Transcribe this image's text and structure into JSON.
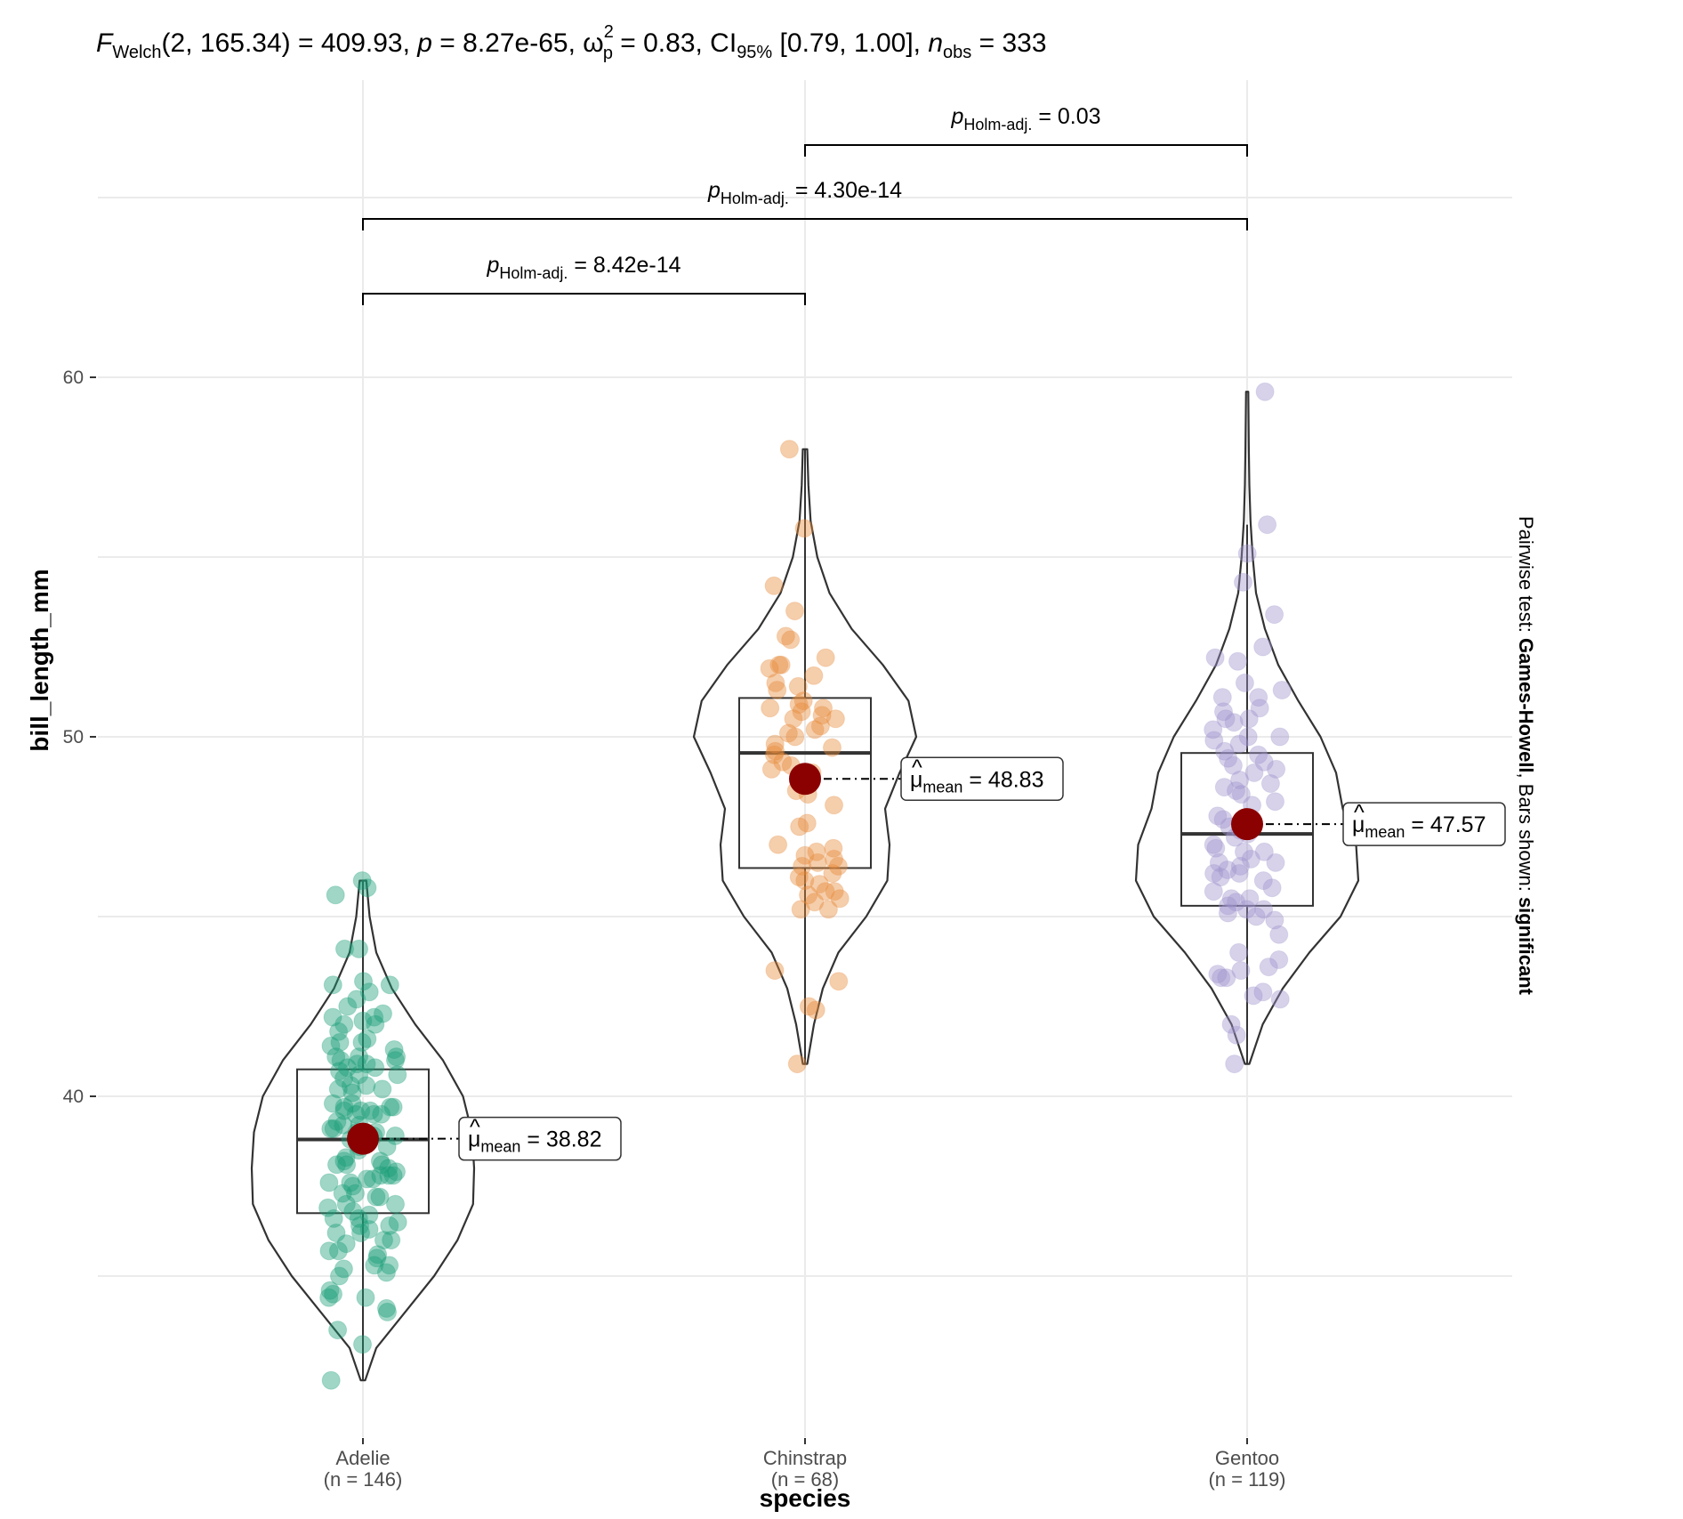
{
  "chart_data": {
    "type": "violin",
    "subtitle": {
      "stat_symbol": "F",
      "stat_sub": "Welch",
      "stat_args": "(2, 165.34) = 409.93, ",
      "p_symbol": "p",
      "p_value": " = 8.27e-65, ",
      "effsize_symbol": "ω",
      "effsize_sup": "2",
      "effsize_sub": "p",
      "effsize_value": " = 0.83, CI",
      "ci_sub": "95%",
      "ci_value": " [0.79, 1.00], ",
      "n_symbol": "n",
      "n_sub": "obs",
      "n_value": " = 333"
    },
    "xlabel": "species",
    "ylabel": "bill_length_mm",
    "ylim": [
      31,
      69
    ],
    "yticks": [
      40,
      50,
      60
    ],
    "grid": true,
    "caption": {
      "prefix": "Pairwise test: ",
      "test": "Games-Howell",
      "middle": ", Bars shown: ",
      "bars": "significant"
    },
    "categories": [
      {
        "name": "Adelie",
        "n_label": "(n = 146)",
        "color": "#1b9e77",
        "mean": 38.82,
        "mean_label": "38.82",
        "box": {
          "q1": 36.75,
          "median": 38.8,
          "q3": 40.75,
          "whisker_low": 32.1,
          "whisker_high": 46.0
        },
        "points": [
          46.0,
          45.8,
          45.6,
          44.1,
          44.1,
          43.2,
          43.1,
          43.1,
          42.9,
          42.7,
          42.5,
          42.3,
          42.2,
          42.2,
          42.1,
          42.0,
          42.0,
          41.8,
          41.6,
          41.5,
          41.5,
          41.4,
          41.3,
          41.1,
          41.1,
          41.1,
          41.0,
          41.0,
          40.9,
          40.9,
          40.8,
          40.8,
          40.7,
          40.6,
          40.6,
          40.5,
          40.3,
          40.3,
          40.2,
          40.2,
          40.1,
          39.8,
          39.8,
          39.7,
          39.7,
          39.7,
          39.6,
          39.6,
          39.6,
          39.5,
          39.5,
          39.5,
          39.3,
          39.2,
          39.2,
          39.1,
          39.1,
          39.0,
          39.0,
          38.9,
          38.9,
          38.8,
          38.8,
          38.8,
          38.7,
          38.6,
          38.6,
          38.5,
          38.3,
          38.2,
          38.2,
          38.1,
          38.1,
          38.1,
          38.0,
          37.9,
          37.8,
          37.8,
          37.8,
          37.7,
          37.7,
          37.6,
          37.6,
          37.5,
          37.3,
          37.3,
          37.2,
          37.2,
          37.0,
          37.0,
          36.9,
          36.8,
          36.7,
          36.6,
          36.6,
          36.5,
          36.4,
          36.4,
          36.3,
          36.2,
          36.2,
          36.0,
          36.0,
          35.9,
          35.7,
          35.7,
          35.6,
          35.5,
          35.3,
          35.3,
          35.2,
          35.1,
          35.0,
          34.6,
          34.5,
          34.4,
          34.4,
          34.1,
          34.0,
          33.5,
          33.1,
          32.1
        ],
        "violin": [
          [
            32.1,
            0.02
          ],
          [
            33.0,
            0.12
          ],
          [
            34.0,
            0.38
          ],
          [
            35.0,
            0.64
          ],
          [
            36.0,
            0.85
          ],
          [
            37.0,
            0.99
          ],
          [
            38.0,
            1.0
          ],
          [
            39.0,
            0.98
          ],
          [
            40.0,
            0.9
          ],
          [
            41.0,
            0.72
          ],
          [
            42.0,
            0.47
          ],
          [
            43.0,
            0.26
          ],
          [
            44.0,
            0.12
          ],
          [
            45.0,
            0.06
          ],
          [
            46.0,
            0.03
          ]
        ]
      },
      {
        "name": "Chinstrap",
        "n_label": "(n = 68)",
        "color": "#e78a3a",
        "mean": 48.83,
        "mean_label": "48.83",
        "box": {
          "q1": 46.35,
          "median": 49.55,
          "q3": 51.08,
          "whisker_low": 40.9,
          "whisker_high": 58.0
        },
        "points": [
          58.0,
          55.8,
          54.2,
          53.5,
          52.8,
          52.7,
          52.2,
          52.0,
          52.0,
          51.9,
          51.7,
          51.5,
          51.4,
          51.3,
          51.0,
          50.9,
          50.8,
          50.8,
          50.7,
          50.6,
          50.5,
          50.5,
          50.3,
          50.2,
          50.1,
          50.0,
          49.8,
          49.7,
          49.6,
          49.5,
          49.3,
          49.2,
          49.1,
          49.0,
          48.8,
          48.5,
          48.4,
          48.1,
          47.6,
          47.5,
          47.0,
          46.9,
          46.8,
          46.7,
          46.6,
          46.5,
          46.4,
          46.4,
          46.2,
          46.1,
          46.0,
          45.9,
          45.7,
          45.7,
          45.6,
          45.5,
          45.4,
          45.2,
          45.2,
          43.5,
          43.2,
          42.5,
          42.4,
          40.9
        ],
        "violin": [
          [
            40.9,
            0.02
          ],
          [
            42.0,
            0.08
          ],
          [
            43.0,
            0.16
          ],
          [
            44.0,
            0.3
          ],
          [
            45.0,
            0.55
          ],
          [
            46.0,
            0.74
          ],
          [
            47.0,
            0.76
          ],
          [
            48.0,
            0.72
          ],
          [
            49.0,
            0.85
          ],
          [
            50.0,
            1.0
          ],
          [
            51.0,
            0.93
          ],
          [
            52.0,
            0.7
          ],
          [
            53.0,
            0.42
          ],
          [
            54.0,
            0.22
          ],
          [
            55.0,
            0.11
          ],
          [
            56.0,
            0.05
          ],
          [
            57.0,
            0.03
          ],
          [
            58.0,
            0.02
          ]
        ]
      },
      {
        "name": "Gentoo",
        "n_label": "(n = 119)",
        "color": "#9f94cc",
        "mean": 47.57,
        "mean_label": "47.57",
        "box": {
          "q1": 45.3,
          "median": 47.3,
          "q3": 49.55,
          "whisker_low": 40.9,
          "whisker_high": 55.9
        },
        "points": [
          59.6,
          55.9,
          55.1,
          54.3,
          53.4,
          52.5,
          52.2,
          52.1,
          51.5,
          51.3,
          51.1,
          51.1,
          50.8,
          50.7,
          50.5,
          50.5,
          50.4,
          50.2,
          50.0,
          50.0,
          49.9,
          49.8,
          49.6,
          49.5,
          49.4,
          49.3,
          49.2,
          49.1,
          49.0,
          48.8,
          48.7,
          48.6,
          48.5,
          48.4,
          48.2,
          48.1,
          47.8,
          47.7,
          47.5,
          47.5,
          47.4,
          47.3,
          47.2,
          47.0,
          46.9,
          46.8,
          46.8,
          46.6,
          46.5,
          46.5,
          46.4,
          46.3,
          46.2,
          46.2,
          46.1,
          46.0,
          45.8,
          45.7,
          45.5,
          45.5,
          45.4,
          45.3,
          45.2,
          45.2,
          45.1,
          45.0,
          44.9,
          44.5,
          44.0,
          43.8,
          43.6,
          43.5,
          43.4,
          43.3,
          43.3,
          42.9,
          42.8,
          42.7,
          42.0,
          41.7,
          40.9
        ],
        "violin": [
          [
            40.9,
            0.02
          ],
          [
            42.0,
            0.14
          ],
          [
            43.0,
            0.32
          ],
          [
            44.0,
            0.56
          ],
          [
            45.0,
            0.84
          ],
          [
            46.0,
            1.0
          ],
          [
            47.0,
            0.98
          ],
          [
            48.0,
            0.86
          ],
          [
            49.0,
            0.8
          ],
          [
            50.0,
            0.66
          ],
          [
            51.0,
            0.46
          ],
          [
            52.0,
            0.28
          ],
          [
            53.0,
            0.16
          ],
          [
            54.0,
            0.08
          ],
          [
            55.0,
            0.05
          ],
          [
            56.0,
            0.03
          ],
          [
            57.0,
            0.02
          ],
          [
            58.0,
            0.015
          ],
          [
            59.6,
            0.01
          ]
        ]
      }
    ],
    "comparisons": [
      {
        "from": "Adelie",
        "to": "Chinstrap",
        "p_prefix": "p",
        "p_sub": "Holm-adj.",
        "p_value": "8.42e-14"
      },
      {
        "from": "Adelie",
        "to": "Gentoo",
        "p_prefix": "p",
        "p_sub": "Holm-adj.",
        "p_value": "4.30e-14"
      },
      {
        "from": "Chinstrap",
        "to": "Gentoo",
        "p_prefix": "p",
        "p_sub": "Holm-adj.",
        "p_value": "0.03"
      }
    ],
    "mean_label_text": {
      "symbol": "μ",
      "sub": "mean",
      "eq": " = "
    },
    "mean_point_color": "#8b0000"
  }
}
